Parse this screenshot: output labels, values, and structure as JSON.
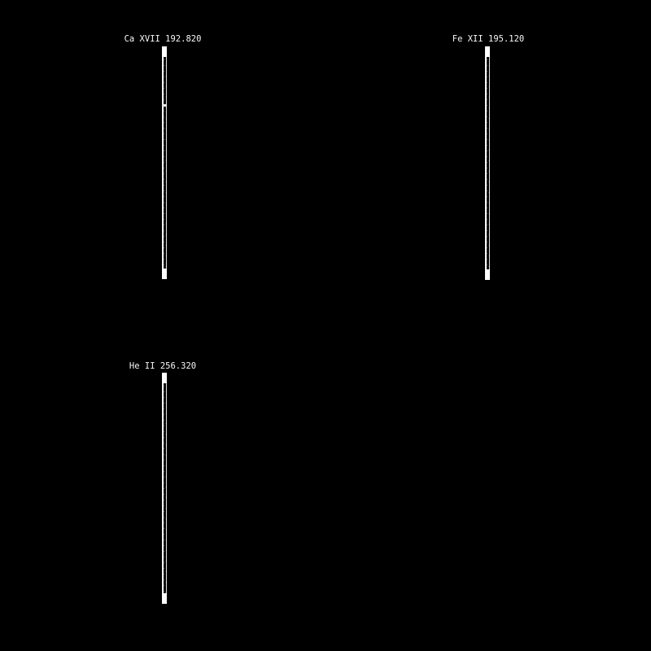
{
  "window": {
    "background_color": "#000000",
    "foreground_color": "#ffffff"
  },
  "chart_data": {
    "type": "heatmap",
    "title": "",
    "subtitle": "",
    "description": "Three narrow vertical EUV spectral-line intensity strips on a black background, each labeled with ion name and wavelength in Angstroms",
    "background": "#000000",
    "label_color": "#ffffff",
    "panels": [
      {
        "label": "Ca XVII 192.820",
        "ion": "Ca XVII",
        "wavelength_angstrom": 192.82,
        "features": [
          "bright saturated cap at top of strip",
          "bright saturated cap at bottom of strip",
          "bright horizontal band about 25% down the strip",
          "bright continuous left edge column",
          "thin bright right edge column",
          "dark interior with sparse gray speckle"
        ]
      },
      {
        "label": "Fe XII 195.120",
        "ion": "Fe XII",
        "wavelength_angstrom": 195.12,
        "features": [
          "bright saturated cap at top of strip",
          "bright saturated cap at bottom of strip",
          "bright continuous left edge column",
          "thin bright right edge column",
          "dark interior with sparse gray speckle"
        ]
      },
      {
        "label": "He II 256.320",
        "ion": "He II",
        "wavelength_angstrom": 256.32,
        "features": [
          "bright saturated cap at top of strip",
          "bright saturated cap at bottom of strip",
          "bright continuous left edge column",
          "thin bright right edge column",
          "dark interior with sparse gray speckle"
        ]
      }
    ]
  }
}
